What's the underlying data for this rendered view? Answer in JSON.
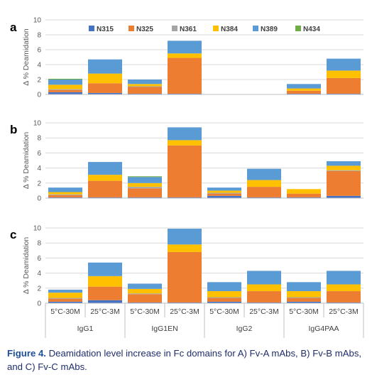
{
  "caption": {
    "label": "Figure 4.",
    "text": " Deamidation level increase in Fc domains for A) Fv-A mAbs, B) Fv-B mAbs, and C) Fv-C mAbs."
  },
  "legend": [
    "N315",
    "N325",
    "N361",
    "N384",
    "N389",
    "N434"
  ],
  "colors": {
    "N315": "#4472c4",
    "N325": "#ed7d31",
    "N361": "#a5a5a5",
    "N384": "#ffc000",
    "N389": "#5b9bd5",
    "N434": "#70ad47"
  },
  "x_conditions": [
    "5°C-30M",
    "25°C-3M",
    "5°C-30M",
    "25°C-3M",
    "5°C-30M",
    "25°C-3M",
    "5°C-30M",
    "25°C-3M"
  ],
  "x_groups": [
    "IgG1",
    "IgG1EN",
    "IgG2",
    "IgG4PAA"
  ],
  "chart_data": [
    {
      "type": "bar",
      "panel": "a",
      "ylabel": "Δ % Deamidation",
      "ylim": [
        0,
        10
      ],
      "yticks": [
        "0",
        "2",
        "4",
        "6",
        "8",
        "10"
      ],
      "series": [
        {
          "name": "N315",
          "values": [
            0.3,
            0.2,
            0.1,
            0.1,
            null,
            null,
            0.1,
            0.1
          ]
        },
        {
          "name": "N325",
          "values": [
            0.3,
            1.3,
            0.9,
            4.8,
            null,
            null,
            0.4,
            2.1
          ]
        },
        {
          "name": "N361",
          "values": [
            0.1,
            0.0,
            0.1,
            0.0,
            null,
            null,
            0.0,
            0.0
          ]
        },
        {
          "name": "N384",
          "values": [
            0.6,
            1.3,
            0.3,
            0.6,
            null,
            null,
            0.3,
            1.0
          ]
        },
        {
          "name": "N389",
          "values": [
            0.7,
            1.9,
            0.6,
            1.7,
            null,
            null,
            0.6,
            1.6
          ]
        },
        {
          "name": "N434",
          "values": [
            0.1,
            0.0,
            0.0,
            0.0,
            null,
            null,
            0.0,
            0.0
          ]
        }
      ]
    },
    {
      "type": "bar",
      "panel": "b",
      "ylabel": "Δ % Deamidation",
      "ylim": [
        0,
        10
      ],
      "yticks": [
        "0",
        "2",
        "4",
        "6",
        "8",
        "10"
      ],
      "series": [
        {
          "name": "N315",
          "values": [
            0.1,
            0.1,
            0.1,
            0.1,
            0.3,
            0.1,
            0.1,
            0.3
          ]
        },
        {
          "name": "N325",
          "values": [
            0.3,
            2.2,
            1.2,
            6.9,
            0.3,
            1.4,
            0.5,
            3.3
          ]
        },
        {
          "name": "N361",
          "values": [
            0.1,
            0.0,
            0.2,
            0.0,
            0.1,
            0.0,
            0.0,
            0.1
          ]
        },
        {
          "name": "N384",
          "values": [
            0.3,
            0.8,
            0.5,
            0.7,
            0.3,
            0.9,
            0.6,
            0.6
          ]
        },
        {
          "name": "N389",
          "values": [
            0.6,
            1.7,
            0.8,
            1.7,
            0.4,
            1.5,
            0.0,
            0.6
          ]
        },
        {
          "name": "N434",
          "values": [
            0.0,
            0.0,
            0.1,
            0.0,
            0.0,
            0.0,
            0.0,
            0.0
          ]
        }
      ]
    },
    {
      "type": "bar",
      "panel": "c",
      "ylabel": "Δ % Deamidation",
      "ylim": [
        0,
        10
      ],
      "yticks": [
        "0",
        "2",
        "4",
        "6",
        "8",
        "10"
      ],
      "series": [
        {
          "name": "N315",
          "values": [
            0.2,
            0.4,
            0.1,
            0.1,
            0.2,
            0.1,
            0.2,
            0.1
          ]
        },
        {
          "name": "N325",
          "values": [
            0.4,
            1.8,
            1.1,
            6.7,
            0.5,
            1.5,
            0.5,
            1.5
          ]
        },
        {
          "name": "N361",
          "values": [
            0.1,
            0.0,
            0.1,
            0.0,
            0.1,
            0.0,
            0.1,
            0.0
          ]
        },
        {
          "name": "N384",
          "values": [
            0.7,
            1.4,
            0.6,
            1.0,
            0.8,
            0.9,
            0.8,
            0.9
          ]
        },
        {
          "name": "N389",
          "values": [
            0.4,
            1.8,
            0.7,
            2.1,
            1.2,
            1.8,
            1.2,
            1.8
          ]
        },
        {
          "name": "N434",
          "values": [
            0.0,
            0.0,
            0.0,
            0.0,
            0.0,
            0.0,
            0.0,
            0.0
          ]
        }
      ]
    }
  ]
}
